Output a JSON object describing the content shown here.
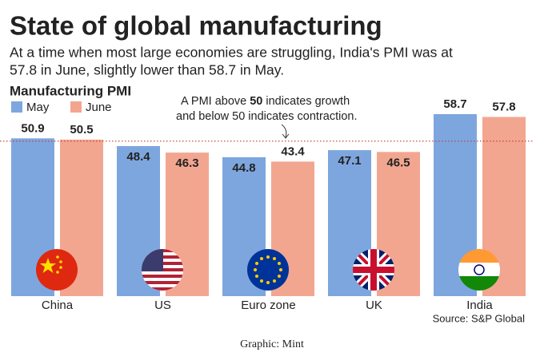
{
  "chart_data": {
    "type": "bar",
    "title": "State of global manufacturing",
    "subtitle": [
      "At a time when most large economies are struggling, India's PMI was at",
      "57.8 in June, slightly lower than 58.7 in May."
    ],
    "y_axis_label": "Manufacturing PMI",
    "categories": [
      "China",
      "US",
      "Euro zone",
      "UK",
      "India"
    ],
    "series": [
      {
        "name": "May",
        "color": "#7ea6de",
        "values": [
          50.9,
          48.4,
          44.8,
          47.1,
          58.7
        ]
      },
      {
        "name": "June",
        "color": "#f2a690",
        "values": [
          50.5,
          46.3,
          43.4,
          46.5,
          57.8
        ]
      }
    ],
    "ylim": [
      0,
      60
    ],
    "reference_line": 50,
    "annotation": [
      "A PMI above",
      "50",
      "indicates growth",
      "and below 50 indicates contraction."
    ],
    "source": "Source: S&P Global",
    "credit": "Graphic: Mint"
  }
}
